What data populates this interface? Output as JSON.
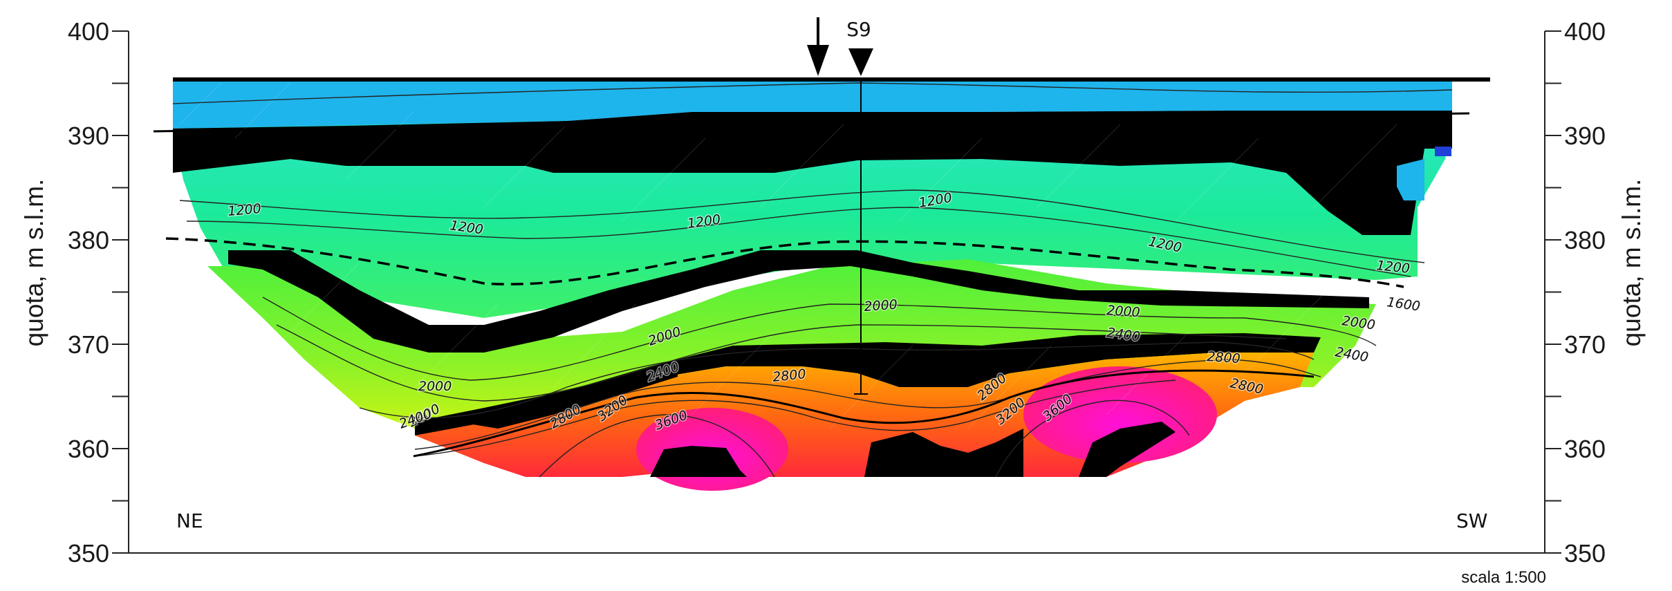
{
  "chart_data": {
    "type": "heatmap",
    "ylabel_left": "quota, m s.l.m.",
    "ylabel_right": "quota, m s.l.m.",
    "ylim": [
      350,
      400
    ],
    "yticks": [
      400,
      390,
      380,
      370,
      360,
      350
    ],
    "direction_labels": {
      "left": "NE",
      "right": "SW"
    },
    "borehole_label": "S9",
    "scale_label": "scala 1:500",
    "contour_labels": [
      {
        "text": "1200"
      },
      {
        "text": "1200"
      },
      {
        "text": "1200"
      },
      {
        "text": "1200"
      },
      {
        "text": "1200"
      },
      {
        "text": "1200"
      },
      {
        "text": "1600"
      },
      {
        "text": "2000"
      },
      {
        "text": "2000"
      },
      {
        "text": "2000"
      },
      {
        "text": "2000"
      },
      {
        "text": "2000"
      },
      {
        "text": "2400"
      },
      {
        "text": "2400"
      },
      {
        "text": "2400"
      },
      {
        "text": "2400"
      },
      {
        "text": "2400"
      },
      {
        "text": "2800"
      },
      {
        "text": "2800"
      },
      {
        "text": "2800"
      },
      {
        "text": "2800"
      },
      {
        "text": "2800"
      },
      {
        "text": "3200"
      },
      {
        "text": "3200"
      },
      {
        "text": "3600"
      },
      {
        "text": "3600"
      }
    ],
    "colors": {
      "top_layer": "#1eb4ec",
      "upper": "#1de3c0",
      "mid": "#7cf03a",
      "low": "#c6f315",
      "orange": "#ffa500",
      "red": "#ff3c1e",
      "magenta": "#ff1aa5",
      "dark_blue": "#2040d8",
      "mask": "#000000"
    }
  }
}
